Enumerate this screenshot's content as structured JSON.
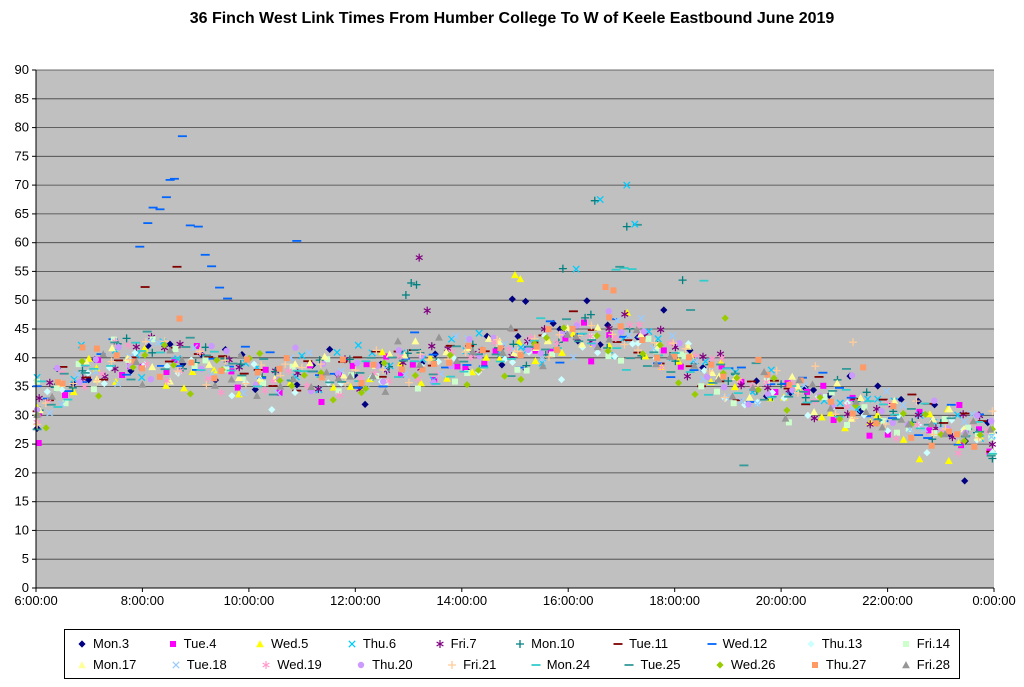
{
  "chart_data": {
    "type": "scatter",
    "title": "36 Finch West Link Times From Humber College To W of Keele Eastbound June 2019",
    "xlabel": "",
    "ylabel": "",
    "x_axis": {
      "min_hour": 6,
      "max_hour": 24,
      "tick_step_hours": 2,
      "tick_labels": [
        "6:00:00",
        "8:00:00",
        "10:00:00",
        "12:00:00",
        "14:00:00",
        "16:00:00",
        "18:00:00",
        "20:00:00",
        "22:00:00",
        "0:00:00"
      ]
    },
    "y_axis": {
      "min": 0,
      "max": 90,
      "tick_step": 5,
      "tick_labels": [
        "0",
        "5",
        "10",
        "15",
        "20",
        "25",
        "30",
        "35",
        "40",
        "45",
        "50",
        "55",
        "60",
        "65",
        "70",
        "75",
        "80",
        "85",
        "90"
      ]
    },
    "plot": {
      "bg": "#c0c0c0",
      "gridline": "#404040",
      "axis": "#000000"
    },
    "legend_position": "bottom",
    "grid": "horizontal",
    "pattern": {
      "sample_start_hour": 6,
      "sample_end_hour": 24,
      "sample_interval_hours": 0.3,
      "noise_amplitude": 5,
      "skip_probability": 0.12,
      "trend_mean_minutes": [
        [
          6,
          31
        ],
        [
          6.5,
          34.5
        ],
        [
          7,
          37.5
        ],
        [
          7.5,
          39
        ],
        [
          8,
          39.5
        ],
        [
          9,
          39
        ],
        [
          10,
          37
        ],
        [
          10.7,
          36
        ],
        [
          11.5,
          36.8
        ],
        [
          12.5,
          37.8
        ],
        [
          13.5,
          38.8
        ],
        [
          14.5,
          40.3
        ],
        [
          15.5,
          42.3
        ],
        [
          16.5,
          43.6
        ],
        [
          17.2,
          43.2
        ],
        [
          18,
          40
        ],
        [
          18.7,
          37
        ],
        [
          19.5,
          34.2
        ],
        [
          20.5,
          33.2
        ],
        [
          21.5,
          31.2
        ],
        [
          22.5,
          28.8
        ],
        [
          23.5,
          26.8
        ],
        [
          24,
          26
        ]
      ]
    },
    "series": [
      {
        "name": "Mon.3",
        "marker": "diamond",
        "color": "#000080",
        "seed": 3
      },
      {
        "name": "Tue.4",
        "marker": "square",
        "color": "#FF00FF",
        "seed": 4
      },
      {
        "name": "Wed.5",
        "marker": "triangle",
        "color": "#FFFF00",
        "seed": 5
      },
      {
        "name": "Thu.6",
        "marker": "x",
        "color": "#00CCFF",
        "seed": 6
      },
      {
        "name": "Fri.7",
        "marker": "asterisk",
        "color": "#800080",
        "seed": 7
      },
      {
        "name": "Mon.10",
        "marker": "plus",
        "color": "#008080",
        "seed": 10
      },
      {
        "name": "Tue.11",
        "marker": "dash",
        "color": "#800000",
        "seed": 11
      },
      {
        "name": "Wed.12",
        "marker": "dash",
        "color": "#0066FF",
        "seed": 12
      },
      {
        "name": "Thu.13",
        "marker": "diamond",
        "color": "#CCFFFF",
        "seed": 13
      },
      {
        "name": "Fri.14",
        "marker": "square",
        "color": "#CCFFCC",
        "seed": 14
      },
      {
        "name": "Mon.17",
        "marker": "triangle",
        "color": "#FFFF99",
        "seed": 17
      },
      {
        "name": "Tue.18",
        "marker": "x",
        "color": "#99CCFF",
        "seed": 18
      },
      {
        "name": "Wed.19",
        "marker": "asterisk",
        "color": "#FF99CC",
        "seed": 19
      },
      {
        "name": "Thu.20",
        "marker": "circle",
        "color": "#CC99FF",
        "seed": 20
      },
      {
        "name": "Fri.21",
        "marker": "plus",
        "color": "#FFCC99",
        "seed": 21
      },
      {
        "name": "Mon.24",
        "marker": "dash",
        "color": "#33CCCC",
        "seed": 24
      },
      {
        "name": "Tue.25",
        "marker": "dash",
        "color": "#339999",
        "seed": 25
      },
      {
        "name": "Wed.26",
        "marker": "diamond",
        "color": "#99CC00",
        "seed": 26
      },
      {
        "name": "Thu.27",
        "marker": "square",
        "color": "#FF9966",
        "seed": 27
      },
      {
        "name": "Fri.28",
        "marker": "triangle",
        "color": "#969696",
        "seed": 28
      }
    ],
    "outlier_points": [
      {
        "series": "Wed.12",
        "t": 7.95,
        "v": 59.3
      },
      {
        "series": "Wed.12",
        "t": 8.1,
        "v": 63.4
      },
      {
        "series": "Wed.12",
        "t": 8.2,
        "v": 66.1
      },
      {
        "series": "Wed.12",
        "t": 8.33,
        "v": 65.8
      },
      {
        "series": "Wed.12",
        "t": 8.45,
        "v": 67.9
      },
      {
        "series": "Wed.12",
        "t": 8.52,
        "v": 70.9
      },
      {
        "series": "Wed.12",
        "t": 8.6,
        "v": 71.1
      },
      {
        "series": "Wed.12",
        "t": 8.75,
        "v": 78.5
      },
      {
        "series": "Wed.12",
        "t": 8.9,
        "v": 63.0
      },
      {
        "series": "Wed.12",
        "t": 9.05,
        "v": 62.8
      },
      {
        "series": "Wed.12",
        "t": 9.18,
        "v": 57.9
      },
      {
        "series": "Wed.12",
        "t": 9.3,
        "v": 55.9
      },
      {
        "series": "Wed.12",
        "t": 9.45,
        "v": 52.2
      },
      {
        "series": "Wed.12",
        "t": 9.6,
        "v": 50.3
      },
      {
        "series": "Wed.12",
        "t": 10.9,
        "v": 60.3
      },
      {
        "series": "Tue.11",
        "t": 8.05,
        "v": 52.3
      },
      {
        "series": "Tue.11",
        "t": 8.65,
        "v": 55.8
      },
      {
        "series": "Mon.24",
        "t": 16.9,
        "v": 55.3
      },
      {
        "series": "Mon.24",
        "t": 17.05,
        "v": 55.6
      },
      {
        "series": "Mon.24",
        "t": 17.2,
        "v": 55.4
      },
      {
        "series": "Mon.24",
        "t": 18.55,
        "v": 53.4
      },
      {
        "series": "Tue.25",
        "t": 16.97,
        "v": 55.8
      },
      {
        "series": "Tue.25",
        "t": 17.3,
        "v": 63.1
      },
      {
        "series": "Tue.25",
        "t": 19.3,
        "v": 21.3
      },
      {
        "series": "Tue.25",
        "t": 18.3,
        "v": 48.3
      },
      {
        "series": "Thu.6",
        "t": 17.1,
        "v": 70.0
      },
      {
        "series": "Thu.6",
        "t": 16.6,
        "v": 67.5
      },
      {
        "series": "Thu.6",
        "t": 17.25,
        "v": 63.2
      },
      {
        "series": "Thu.6",
        "t": 16.15,
        "v": 55.4
      },
      {
        "series": "Mon.10",
        "t": 16.5,
        "v": 67.3
      },
      {
        "series": "Mon.10",
        "t": 17.1,
        "v": 62.8
      },
      {
        "series": "Mon.10",
        "t": 12.95,
        "v": 50.9
      },
      {
        "series": "Mon.10",
        "t": 13.05,
        "v": 53.0
      },
      {
        "series": "Mon.10",
        "t": 13.15,
        "v": 52.7
      },
      {
        "series": "Mon.10",
        "t": 15.9,
        "v": 55.5
      },
      {
        "series": "Mon.10",
        "t": 18.15,
        "v": 53.5
      },
      {
        "series": "Fri.7",
        "t": 13.2,
        "v": 57.4
      },
      {
        "series": "Fri.7",
        "t": 13.35,
        "v": 48.2
      },
      {
        "series": "Wed.5",
        "t": 15.0,
        "v": 54.4
      },
      {
        "series": "Wed.5",
        "t": 15.1,
        "v": 53.7
      },
      {
        "series": "Wed.5",
        "t": 22.6,
        "v": 22.4
      },
      {
        "series": "Wed.5",
        "t": 23.15,
        "v": 22.1
      },
      {
        "series": "Mon.3",
        "t": 15.2,
        "v": 49.8
      },
      {
        "series": "Mon.3",
        "t": 16.35,
        "v": 49.9
      },
      {
        "series": "Mon.3",
        "t": 14.95,
        "v": 50.2
      },
      {
        "series": "Mon.3",
        "t": 23.45,
        "v": 18.6
      },
      {
        "series": "Thu.27",
        "t": 16.7,
        "v": 52.3
      },
      {
        "series": "Thu.27",
        "t": 16.85,
        "v": 51.7
      },
      {
        "series": "Tue.4",
        "t": 6.05,
        "v": 25.2
      },
      {
        "series": "Tue.4",
        "t": 23.35,
        "v": 31.8
      },
      {
        "series": "Fri.21",
        "t": 21.35,
        "v": 42.7
      },
      {
        "series": "Wed.26",
        "t": 18.95,
        "v": 46.9
      }
    ]
  }
}
